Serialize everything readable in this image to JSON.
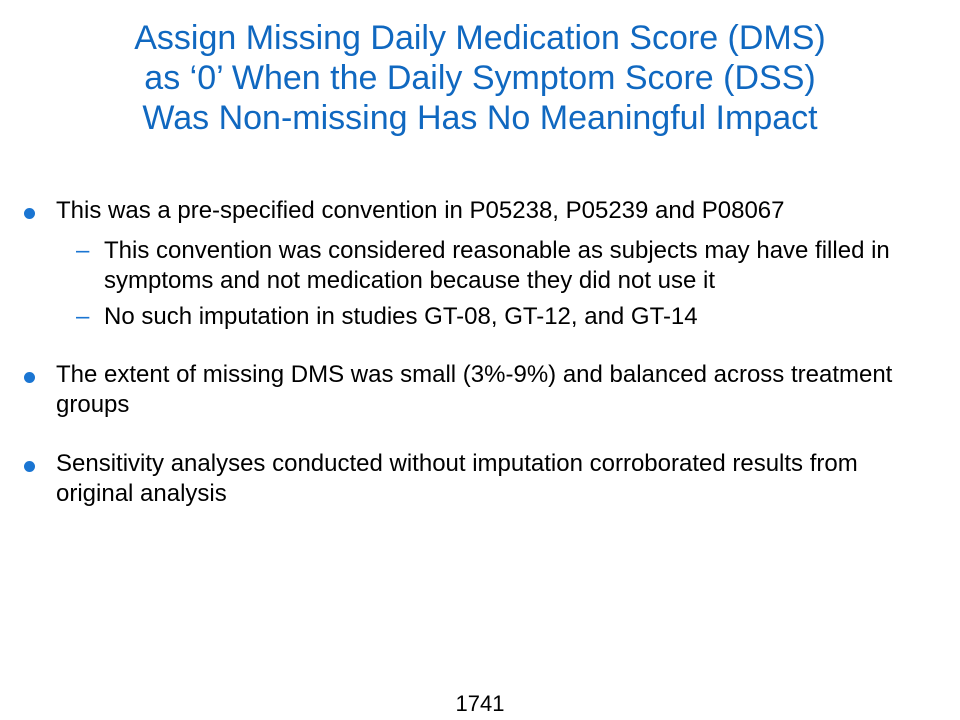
{
  "slide": {
    "title_lines": [
      "Assign Missing Daily Medication Score (DMS)",
      "as ‘0’ When the Daily Symptom Score (DSS)",
      "Was Non-missing Has No Meaningful Impact"
    ],
    "bullets": [
      {
        "text": "This was a pre-specified convention in P05238, P05239 and P08067",
        "sub_items": [
          "This convention was considered reasonable as subjects may have filled in symptoms and not medication because they did not use it",
          "No such imputation in studies GT-08, GT-12, and GT-14"
        ]
      },
      {
        "text": "The extent of missing DMS was small (3%-9%) and balanced across treatment groups"
      },
      {
        "text": "Sensitivity analyses conducted without imputation corroborated results from original analysis"
      }
    ],
    "page_number": "1741"
  },
  "colors": {
    "title": "#1068c0",
    "bullet_marker": "#1a75d2",
    "body_text": "#000000",
    "background": "#ffffff"
  },
  "icons": {
    "bullet_marker": "filled-circle",
    "sub_marker": "en-dash"
  }
}
